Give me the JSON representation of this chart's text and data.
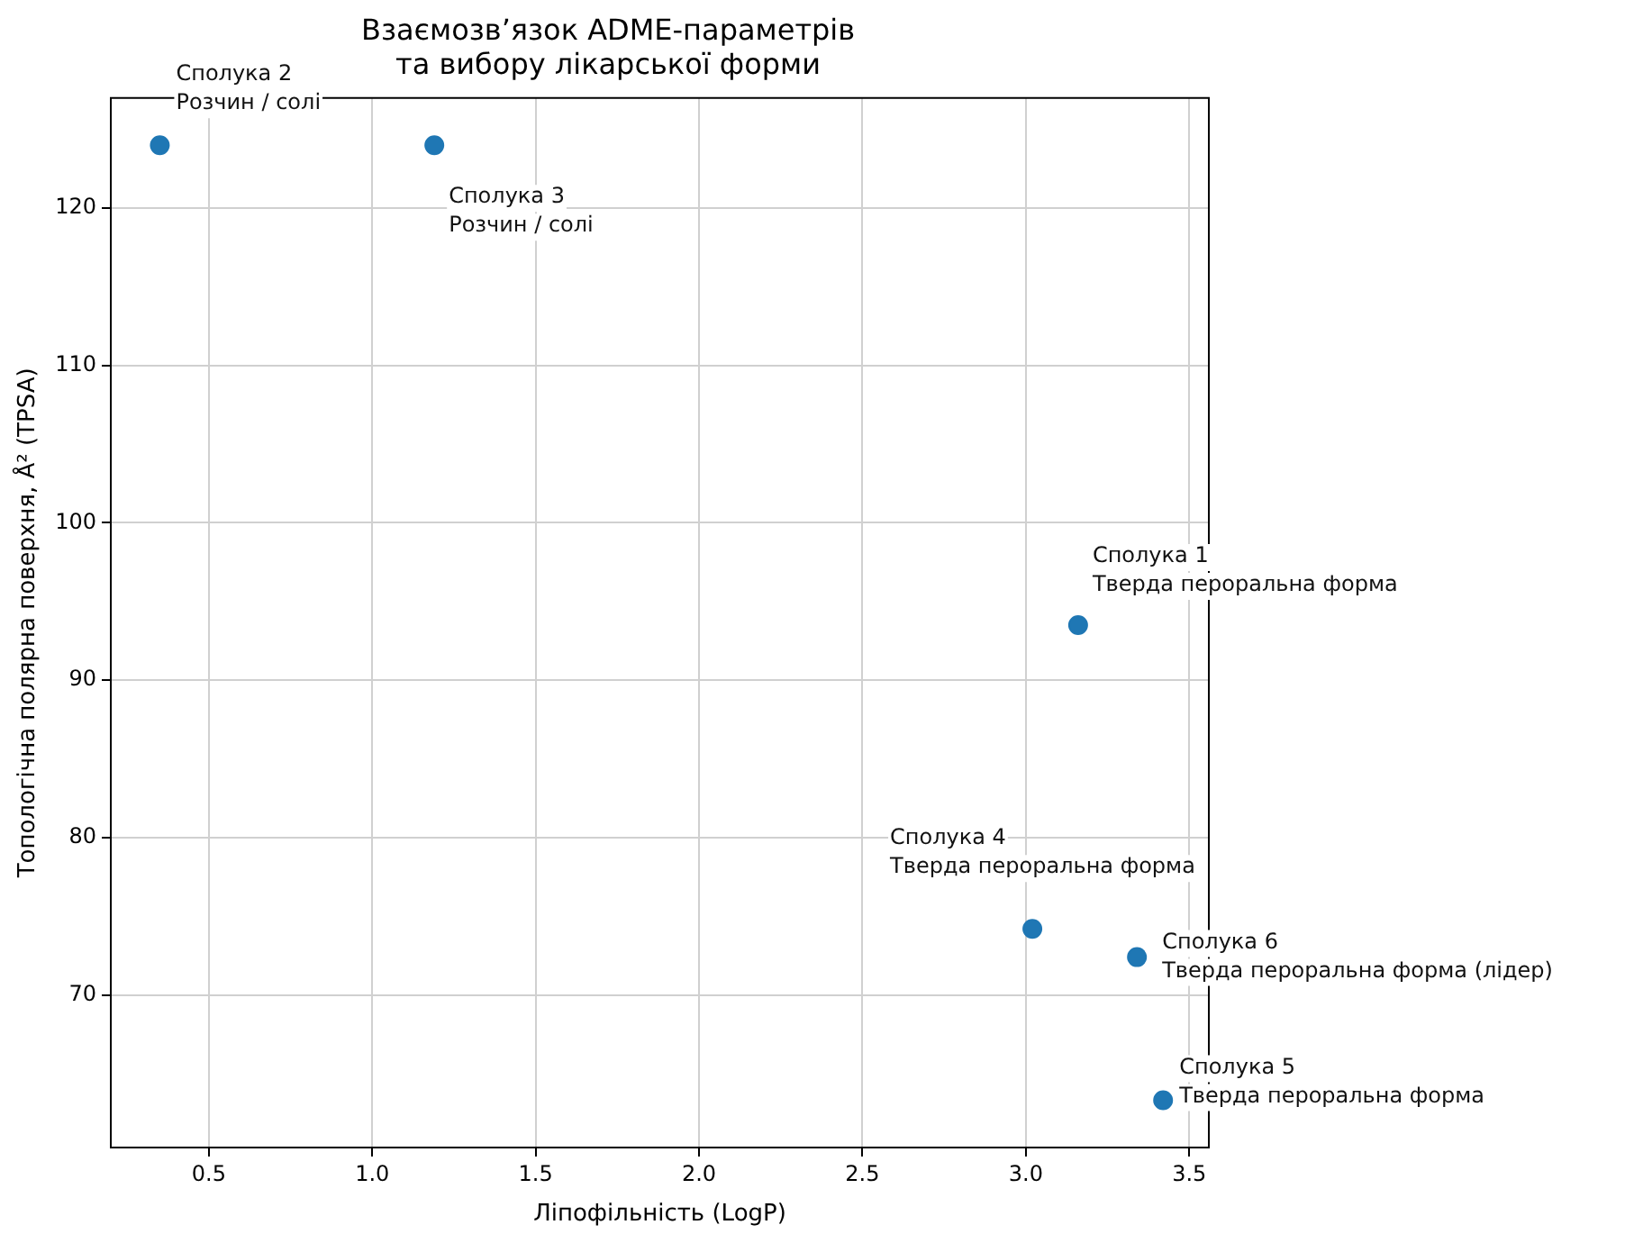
{
  "chart_data": {
    "type": "scatter",
    "title": "Взаємозв’язок ADME-параметрів\nта вибору лікарської форми",
    "xlabel": "Ліпофільність (LogP)",
    "ylabel": "Топологічна полярна поверхня, Å² (TPSA)",
    "x": [
      3.16,
      0.35,
      1.19,
      3.02,
      3.42,
      3.34
    ],
    "series": [
      {
        "color": "#1f77b4",
        "values": [
          93.5,
          124,
          124,
          74.2,
          63.3,
          72.4
        ]
      }
    ],
    "xlim": [
      0.2,
      3.56
    ],
    "ylim": [
      60.3,
      127
    ],
    "xticks": [
      0.5,
      {
        "value": 1,
        "label": "1.0"
      },
      1.5,
      {
        "value": 2,
        "label": "2.0"
      },
      2.5,
      {
        "value": 3,
        "label": "3.0"
      },
      3.5
    ],
    "yticks": [
      70,
      80,
      90,
      100,
      110,
      120
    ],
    "grid": true,
    "legend": false,
    "marker": "circle",
    "annotations": [
      {
        "text": "Сполука 1\nТверда пероральна форма",
        "x": 3.16,
        "y": 93.5
      },
      {
        "text": "Сполука 2\nРозчин / солі",
        "x": 0.35,
        "y": 124
      },
      {
        "text": "Сполука 3\nРозчин / солі",
        "x": 1.19,
        "y": 124
      },
      {
        "text": "Сполука 4\nТверда пероральна форма",
        "x": 3.02,
        "y": 74.2
      },
      {
        "text": "Сполука 5\nТверда пероральна форма",
        "x": 3.42,
        "y": 63.3
      },
      {
        "text": "Сполука 6\nТверда пероральна форма (лідер)",
        "x": 3.34,
        "y": 72.4
      }
    ]
  }
}
